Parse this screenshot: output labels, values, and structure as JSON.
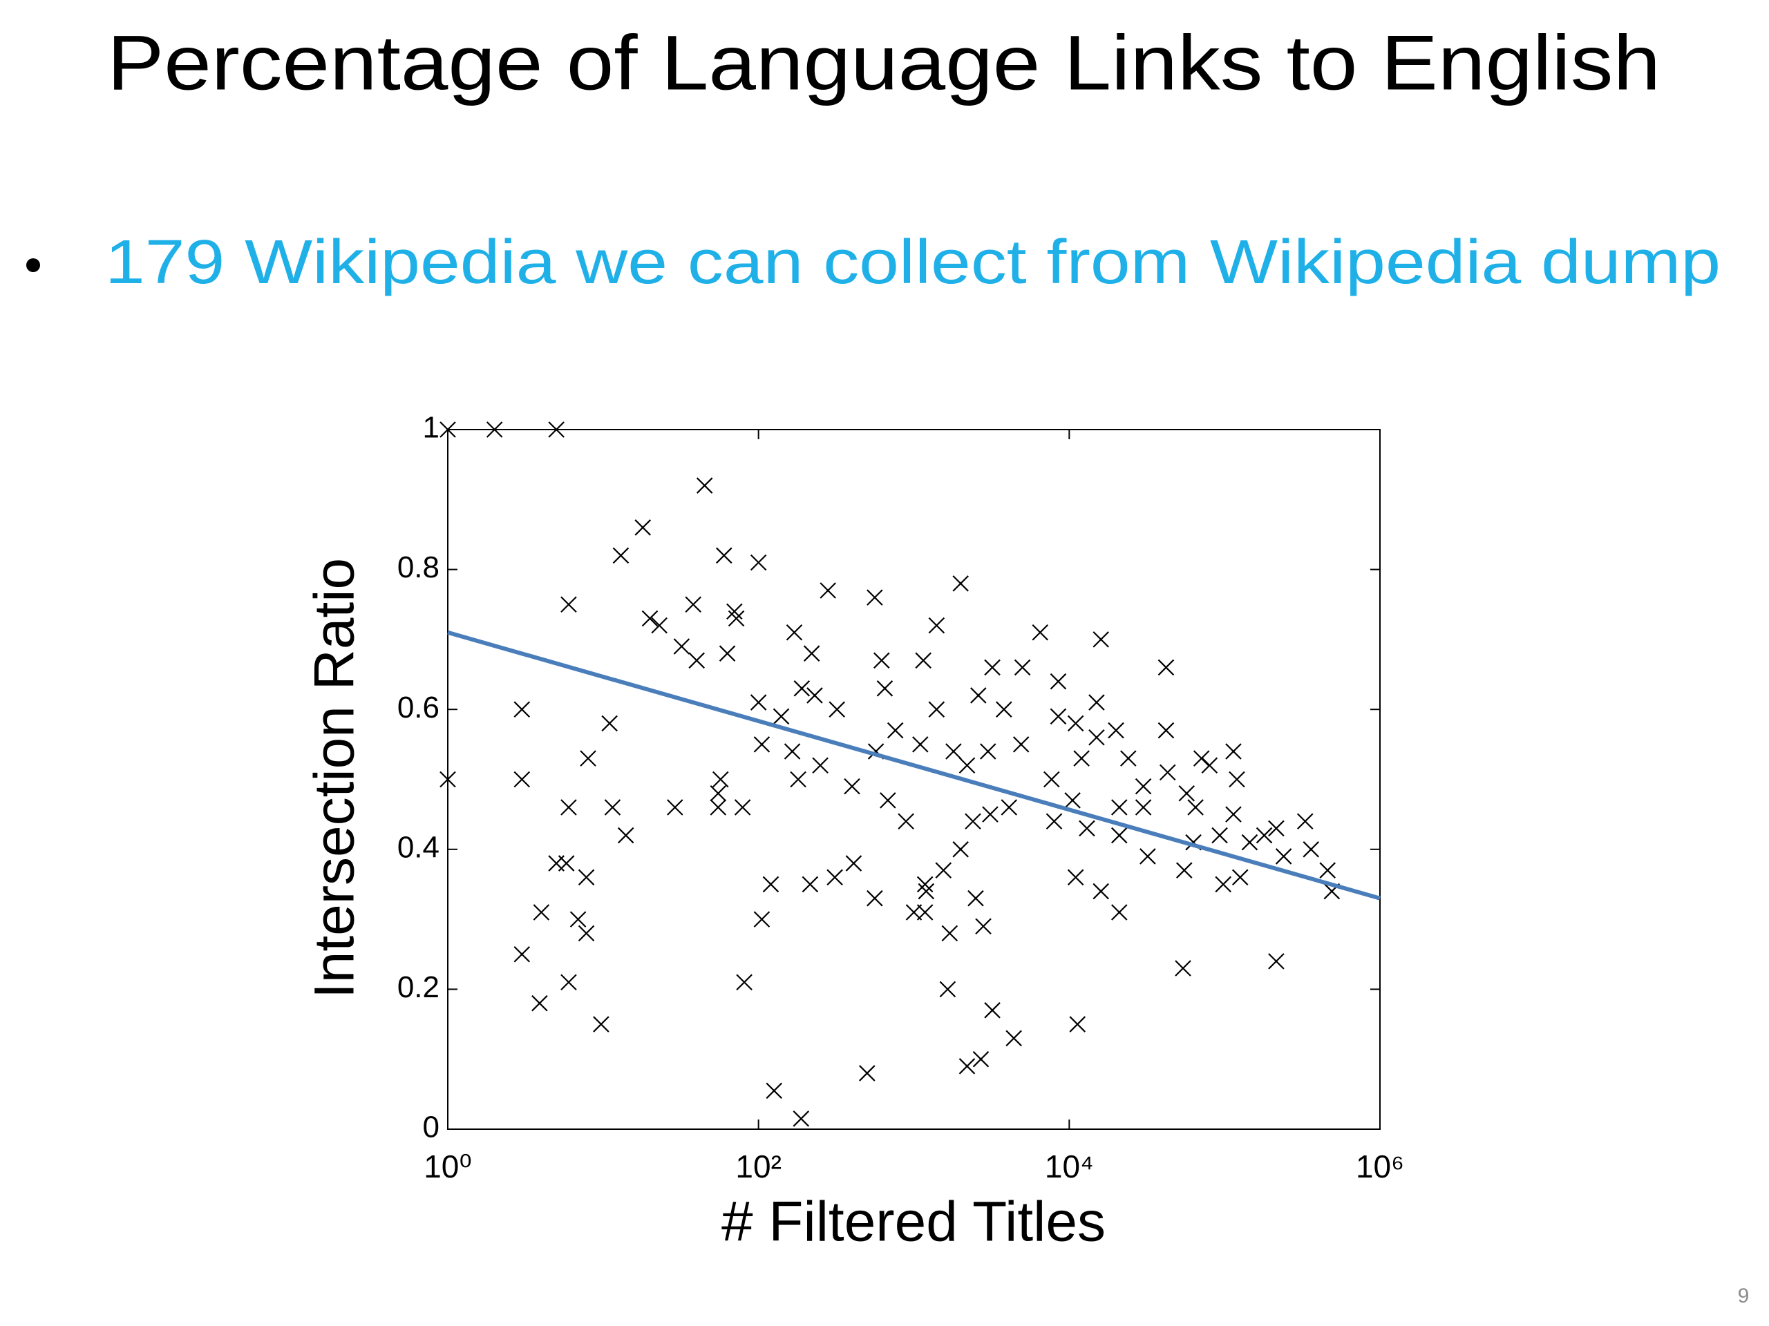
{
  "slide": {
    "title": "Percentage of Language Links to English",
    "bullets": [
      "179 Wikipedia we can collect from Wikipedia dump"
    ],
    "page_number": "9"
  },
  "chart_data": {
    "type": "scatter",
    "xlabel": "# Filtered Titles",
    "ylabel": "Intersection Ratio",
    "xscale": "log",
    "xlim": [
      1,
      1000000
    ],
    "ylim": [
      0,
      1
    ],
    "xticks": [
      {
        "value": 1,
        "label": "10⁰"
      },
      {
        "value": 100,
        "label": "10²"
      },
      {
        "value": 10000,
        "label": "10⁴"
      },
      {
        "value": 1000000,
        "label": "10⁶"
      }
    ],
    "yticks": [
      0,
      0.2,
      0.4,
      0.6,
      0.8,
      1
    ],
    "color": "#000000",
    "marker": "x",
    "x": [
      1,
      2,
      5,
      45,
      18,
      13,
      60,
      100,
      2000,
      280,
      560,
      6,
      38,
      70,
      1400,
      20,
      23,
      72,
      170,
      6500,
      16000,
      32,
      220,
      63,
      40,
      620,
      1150,
      42000,
      3200,
      5000,
      8500,
      190,
      230,
      650,
      2600,
      320,
      1400,
      3800,
      15000,
      8500,
      140,
      3,
      100,
      11000,
      20000,
      760,
      11,
      15000,
      42000,
      71000,
      4900,
      1800,
      3000,
      105,
      165,
      1100,
      12000,
      24000,
      114000,
      8,
      570,
      250,
      2200,
      80000,
      43000,
      30000,
      7700,
      180,
      57,
      3,
      1,
      120000,
      400,
      680,
      55,
      57000,
      65000,
      30000,
      21000,
      4100,
      3100,
      10500,
      6,
      11.5,
      29,
      55,
      79,
      2400,
      8000,
      114000,
      890,
      330000,
      13000,
      93000,
      215000,
      14,
      21000,
      180000,
      63000,
      145000,
      360000,
      2000,
      32000,
      240000,
      5,
      5.8,
      410,
      1550,
      55000,
      11000,
      460000,
      7.8,
      310,
      215,
      120,
      1180,
      98000,
      126000,
      490000,
      1200,
      4,
      560,
      2500,
      16000,
      6.9,
      1000,
      1180,
      21000,
      105,
      7.8,
      1700,
      2800,
      3,
      215000,
      54000,
      6,
      81,
      1650,
      3.9,
      3200,
      9.7,
      11300,
      4400,
      2700,
      2200,
      500,
      126,
      188
    ],
    "values": [
      1,
      1,
      1,
      0.92,
      0.86,
      0.82,
      0.82,
      0.81,
      0.78,
      0.77,
      0.76,
      0.75,
      0.75,
      0.74,
      0.72,
      0.73,
      0.72,
      0.73,
      0.71,
      0.71,
      0.7,
      0.69,
      0.68,
      0.68,
      0.67,
      0.67,
      0.67,
      0.66,
      0.66,
      0.66,
      0.64,
      0.63,
      0.62,
      0.63,
      0.62,
      0.6,
      0.6,
      0.6,
      0.61,
      0.59,
      0.59,
      0.6,
      0.61,
      0.58,
      0.57,
      0.57,
      0.58,
      0.56,
      0.57,
      0.53,
      0.55,
      0.54,
      0.54,
      0.55,
      0.54,
      0.55,
      0.53,
      0.53,
      0.54,
      0.53,
      0.54,
      0.52,
      0.52,
      0.52,
      0.51,
      0.49,
      0.5,
      0.5,
      0.5,
      0.5,
      0.5,
      0.5,
      0.49,
      0.47,
      0.48,
      0.48,
      0.46,
      0.46,
      0.46,
      0.46,
      0.45,
      0.47,
      0.46,
      0.46,
      0.46,
      0.46,
      0.46,
      0.44,
      0.44,
      0.45,
      0.44,
      0.44,
      0.43,
      0.42,
      0.43,
      0.42,
      0.42,
      0.42,
      0.41,
      0.41,
      0.4,
      0.4,
      0.39,
      0.39,
      0.38,
      0.38,
      0.38,
      0.37,
      0.37,
      0.36,
      0.37,
      0.36,
      0.36,
      0.35,
      0.35,
      0.35,
      0.35,
      0.36,
      0.34,
      0.34,
      0.31,
      0.33,
      0.33,
      0.34,
      0.3,
      0.31,
      0.31,
      0.31,
      0.3,
      0.28,
      0.28,
      0.29,
      0.25,
      0.24,
      0.23,
      0.21,
      0.21,
      0.2,
      0.18,
      0.17,
      0.15,
      0.15,
      0.13,
      0.1,
      0.09,
      0.08,
      0.055,
      0.015
    ],
    "trend_line": {
      "x": [
        1,
        1000000
      ],
      "values": [
        0.71,
        0.33
      ],
      "color": "#4a7ebb"
    }
  }
}
